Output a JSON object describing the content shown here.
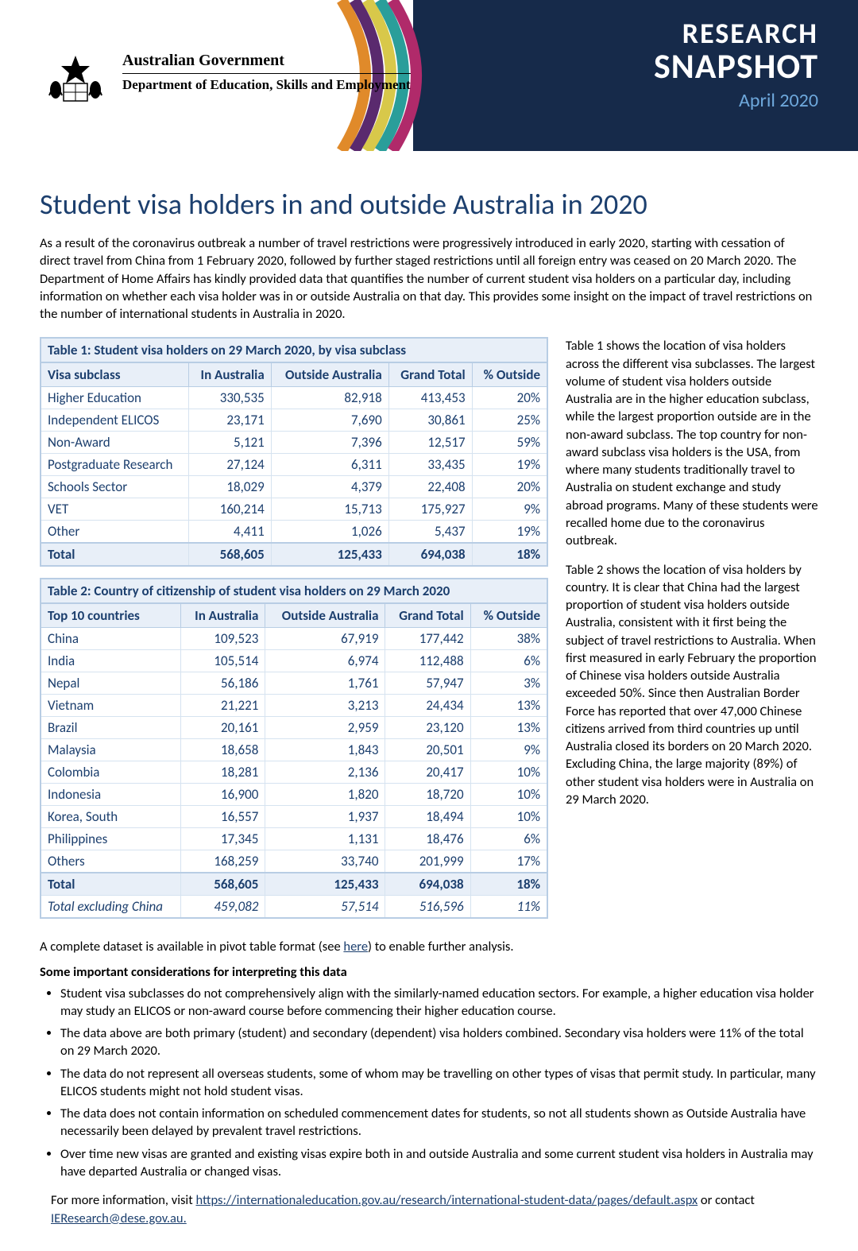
{
  "header": {
    "research": "RESEARCH",
    "snapshot": "SNAPSHOT",
    "date": "April 2020",
    "gov_line1": "Australian Government",
    "gov_line2": "Department of Education, Skills and Employment"
  },
  "title": "Student visa holders in and outside Australia in 2020",
  "intro": "As a result of the coronavirus outbreak a number of travel restrictions were progressively introduced in early 2020, starting with cessation of direct travel from China from 1 February 2020, followed by further staged restrictions until all foreign entry was ceased on 20 March 2020. The Department of Home Affairs has kindly provided data that quantifies the number of current student visa holders on a particular day, including information on whether each visa holder was in or outside Australia on that day. This provides some insight on the impact of travel restrictions on the number of international students in Australia in 2020.",
  "table1": {
    "caption": "Table 1: Student visa holders on 29 March 2020, by visa subclass",
    "columns": [
      "Visa subclass",
      "In Australia",
      "Outside Australia",
      "Grand Total",
      "% Outside"
    ],
    "rows": [
      [
        "Higher Education",
        "330,535",
        "82,918",
        "413,453",
        "20%"
      ],
      [
        "Independent ELICOS",
        "23,171",
        "7,690",
        "30,861",
        "25%"
      ],
      [
        "Non-Award",
        "5,121",
        "7,396",
        "12,517",
        "59%"
      ],
      [
        "Postgraduate Research",
        "27,124",
        "6,311",
        "33,435",
        "19%"
      ],
      [
        "Schools Sector",
        "18,029",
        "4,379",
        "22,408",
        "20%"
      ],
      [
        "VET",
        "160,214",
        "15,713",
        "175,927",
        "9%"
      ],
      [
        "Other",
        "4,411",
        "1,026",
        "5,437",
        "19%"
      ]
    ],
    "total": [
      "Total",
      "568,605",
      "125,433",
      "694,038",
      "18%"
    ]
  },
  "table2": {
    "caption": "Table 2: Country of citizenship of student visa holders on 29 March 2020",
    "columns": [
      "Top 10 countries",
      "In Australia",
      "Outside Australia",
      "Grand Total",
      "% Outside"
    ],
    "rows": [
      [
        "China",
        "109,523",
        "67,919",
        "177,442",
        "38%"
      ],
      [
        "India",
        "105,514",
        "6,974",
        "112,488",
        "6%"
      ],
      [
        "Nepal",
        "56,186",
        "1,761",
        "57,947",
        "3%"
      ],
      [
        "Vietnam",
        "21,221",
        "3,213",
        "24,434",
        "13%"
      ],
      [
        "Brazil",
        "20,161",
        "2,959",
        "23,120",
        "13%"
      ],
      [
        "Malaysia",
        "18,658",
        "1,843",
        "20,501",
        "9%"
      ],
      [
        "Colombia",
        "18,281",
        "2,136",
        "20,417",
        "10%"
      ],
      [
        "Indonesia",
        "16,900",
        "1,820",
        "18,720",
        "10%"
      ],
      [
        "Korea, South",
        "16,557",
        "1,937",
        "18,494",
        "10%"
      ],
      [
        "Philippines",
        "17,345",
        "1,131",
        "18,476",
        "6%"
      ],
      [
        "Others",
        "168,259",
        "33,740",
        "201,999",
        "17%"
      ]
    ],
    "total": [
      "Total",
      "568,605",
      "125,433",
      "694,038",
      "18%"
    ],
    "total_ex": [
      "Total excluding China",
      "459,082",
      "57,514",
      "516,596",
      "11%"
    ]
  },
  "side_para1": "Table 1 shows the location of visa holders across the different visa subclasses. The largest volume of student visa holders outside Australia are in the higher education subclass, while the largest proportion outside are in the non-award subclass. The top country for non-award subclass visa holders is the USA, from where many students traditionally travel to Australia on student exchange and study abroad programs. Many of these students were recalled home due to the coronavirus outbreak.",
  "side_para2": "Table 2 shows the location of visa holders by country. It is clear that China had the largest proportion of student visa holders outside Australia, consistent with it first being the subject of travel restrictions to Australia. When first measured in early February the proportion of Chinese visa holders outside Australia exceeded 50%. Since then Australian Border Force has reported that over 47,000 Chinese citizens arrived from third countries up until Australia closed its borders on 20 March 2020. Excluding China, the large majority (89%) of other student visa holders were in Australia on 29 March 2020.",
  "pivot_text_pre": "A complete dataset is available in pivot table format (see ",
  "pivot_link": "here",
  "pivot_text_post": ") to enable further analysis.",
  "considerations_hdr": "Some important considerations for interpreting this data",
  "considerations": [
    "Student visa subclasses do not comprehensively align with the similarly-named education sectors. For example, a higher education visa holder may study an ELICOS or non-award course before commencing their higher education course.",
    "The data above are both primary (student) and secondary (dependent) visa holders combined. Secondary visa holders were 11% of the total on 29 March 2020.",
    "The data do not represent all overseas students, some of whom may be travelling on other types of visas that permit study. In particular, many ELICOS students might not hold student visas.",
    "The data does not contain information on scheduled commencement dates for students, so not all students shown as Outside Australia have necessarily been delayed by prevalent travel restrictions.",
    "Over time new visas are granted and existing visas expire both in and outside Australia and some current student visa holders in Australia may have departed Australia or changed visas."
  ],
  "footer_pre": "For more information, visit ",
  "footer_link1": "https://internationaleducation.gov.au/research/international-student-data/pages/default.aspx",
  "footer_mid": " or contact ",
  "footer_link2": "IEResearch@dese.gov.au.",
  "colors": {
    "banner_bg": "#162a4a",
    "accent_blue": "#1c3f6e",
    "date_blue": "#6ea8dc",
    "table_border": "#b8cde4",
    "table_header_bg": "#e8eff8",
    "stripe_orange": "#e08a2a",
    "stripe_purple": "#5a2a6e",
    "stripe_teal": "#2a9e9a",
    "stripe_magenta": "#b02a6a",
    "stripe_yellow": "#d8c84a"
  }
}
